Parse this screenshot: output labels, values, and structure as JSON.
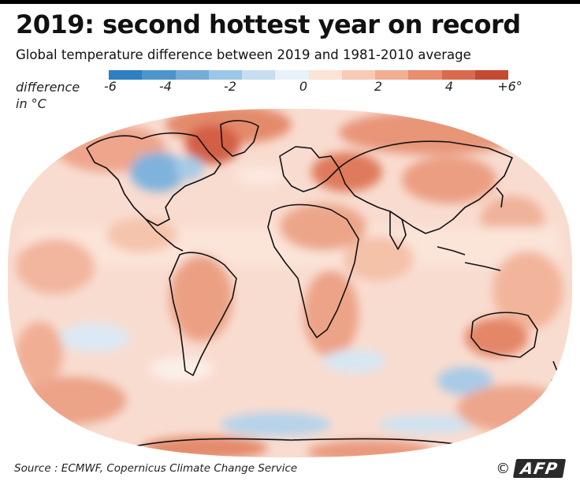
{
  "header": {
    "title": "2019: second hottest year on record",
    "subtitle": "Global temperature difference between 2019 and 1981-2010 average"
  },
  "legend": {
    "label_line1": "difference",
    "label_line2": "in °C",
    "ticks": [
      "-6",
      "-4",
      "-2",
      "0",
      "2",
      "4",
      "+6°"
    ],
    "colors": [
      "#2f7fc1",
      "#4d94cc",
      "#74acd8",
      "#9cc6e6",
      "#c6def0",
      "#e8f1f8",
      "#fbe3d6",
      "#f7cbb5",
      "#f2ae93",
      "#e88d70",
      "#d96a4e",
      "#c44a33"
    ]
  },
  "map": {
    "ocean_base_color": "#f9dcd0",
    "coastline_color": "#111111"
  },
  "footer": {
    "source": "Source : ECMWF, Copernicus Climate Change Service",
    "copyright": "©",
    "logo": "AFP"
  }
}
